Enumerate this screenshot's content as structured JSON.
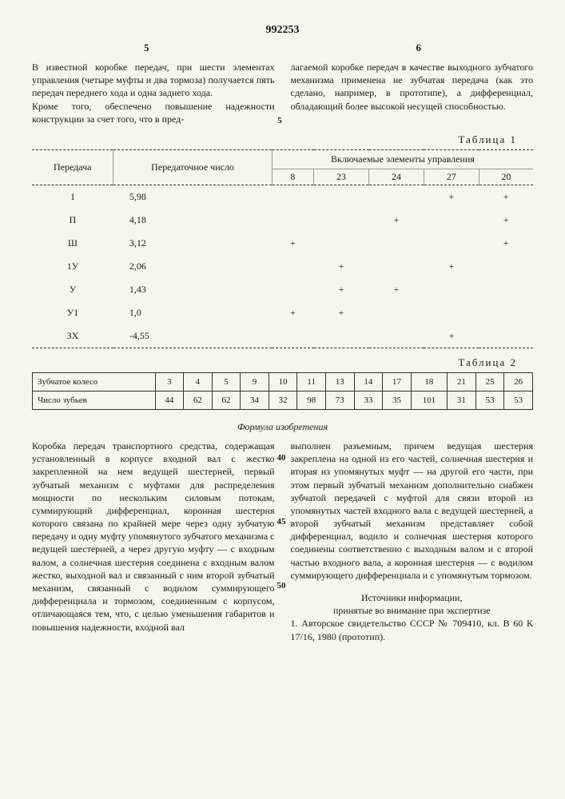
{
  "patent_number": "992253",
  "col_left_num": "5",
  "col_right_num": "6",
  "line_marker_5": "5",
  "top_left_text": "В известной коробке передач, при шести элементах управления (четыре муфты и два тормоза) получается пять передач переднего хода и одна заднего хода.\nКроме того, обеспечено повышение надежности конструкции за счет того, что в пред-",
  "top_right_text": "лагаемой коробке передач в качестве выходного зубчатого механизма применена не зубчатая передача (как это сделано, например, в прототипе), а дифференциал, обладающий более высокой несущей способностью.",
  "table1_label": "Таблица 1",
  "table1": {
    "head_gear": "Передача",
    "head_ratio": "Передаточное число",
    "head_elements": "Включаемые элементы управления",
    "element_cols": [
      "8",
      "23",
      "24",
      "27",
      "20"
    ],
    "rows": [
      {
        "gear": "1",
        "ratio": "5,98",
        "marks": [
          "",
          "",
          "",
          "+",
          "+"
        ]
      },
      {
        "gear": "П",
        "ratio": "4,18",
        "marks": [
          "",
          "",
          "+",
          "",
          "+"
        ]
      },
      {
        "gear": "Ш",
        "ratio": "3,12",
        "marks": [
          "+",
          "",
          "",
          "",
          "+"
        ]
      },
      {
        "gear": "1У",
        "ratio": "2,06",
        "marks": [
          "",
          "+",
          "",
          "+",
          ""
        ]
      },
      {
        "gear": "У",
        "ratio": "1,43",
        "marks": [
          "",
          "+",
          "+",
          "",
          ""
        ]
      },
      {
        "gear": "У1",
        "ratio": "1,0",
        "marks": [
          "+",
          "+",
          "",
          "",
          ""
        ]
      },
      {
        "gear": "ЗХ",
        "ratio": "-4,55",
        "marks": [
          "",
          "",
          "",
          "+",
          ""
        ]
      }
    ]
  },
  "table2_label": "Таблица 2",
  "table2": {
    "row1_label": "Зубчатое колесо",
    "row2_label": "Число зубьев",
    "cols": [
      "3",
      "4",
      "5",
      "9",
      "10",
      "11",
      "13",
      "14",
      "17",
      "18",
      "21",
      "25",
      "26"
    ],
    "teeth": [
      "44",
      "62",
      "62",
      "34",
      "32",
      "98",
      "73",
      "33",
      "35",
      "101",
      "31",
      "53",
      "53"
    ]
  },
  "formula_title": "Формула изобретения",
  "side_40": "40",
  "side_45": "45",
  "side_50": "50",
  "bottom_left": "Коробка передач транспортного средства, содержащая установленный в корпусе входной вал с жестко закрепленной на нем ведущей шестерней, первый зубчатый механизм с муфтами для распределения мощности по нескольким силовым потокам, суммирующий дифференциал, коронная шестерня которого связана по крайней мере через одну зубчатую передачу и одну муфту упомянутого зубчатого механизма с ведущей шестерней, а через другую муфту — с входным валом, а солнечная шестерня соединена с входным валом жестко, выходной вал и связанный с ним второй зубчатый механизм, связанный с водилом суммирующего дифференциала и тормозом, соединенным с корпусом, отличающаяся тем, что, с целью уменьшения габаритов и повышения надежности, входной вал",
  "bottom_right": "выполнен разъемным, причем ведущая шестерня закреплена на одной из его частей, солнечная шестерня и вторая из упомянутых муфт — на другой его части, при этом первый зубчатый механизм дополнительно снабжен зубчатой передачей с муфтой для связи второй из упомянутых частей входного вала с ведущей шестерней, а второй зубчатый механизм представляет собой дифференциал, водило и солнечная шестерня которого соединены соответственно с выходным валом и с второй частью входного вала, а коронная шестерня — с водилом суммирующего дифференциала и с упомянутым тормозом.",
  "sources_title": "Источники информации,\nпринятые во внимание при экспертизе",
  "sources_body": "1. Авторское свидетельство СССР № 709410, кл. В 60 К 17/16, 1980 (прототип)."
}
